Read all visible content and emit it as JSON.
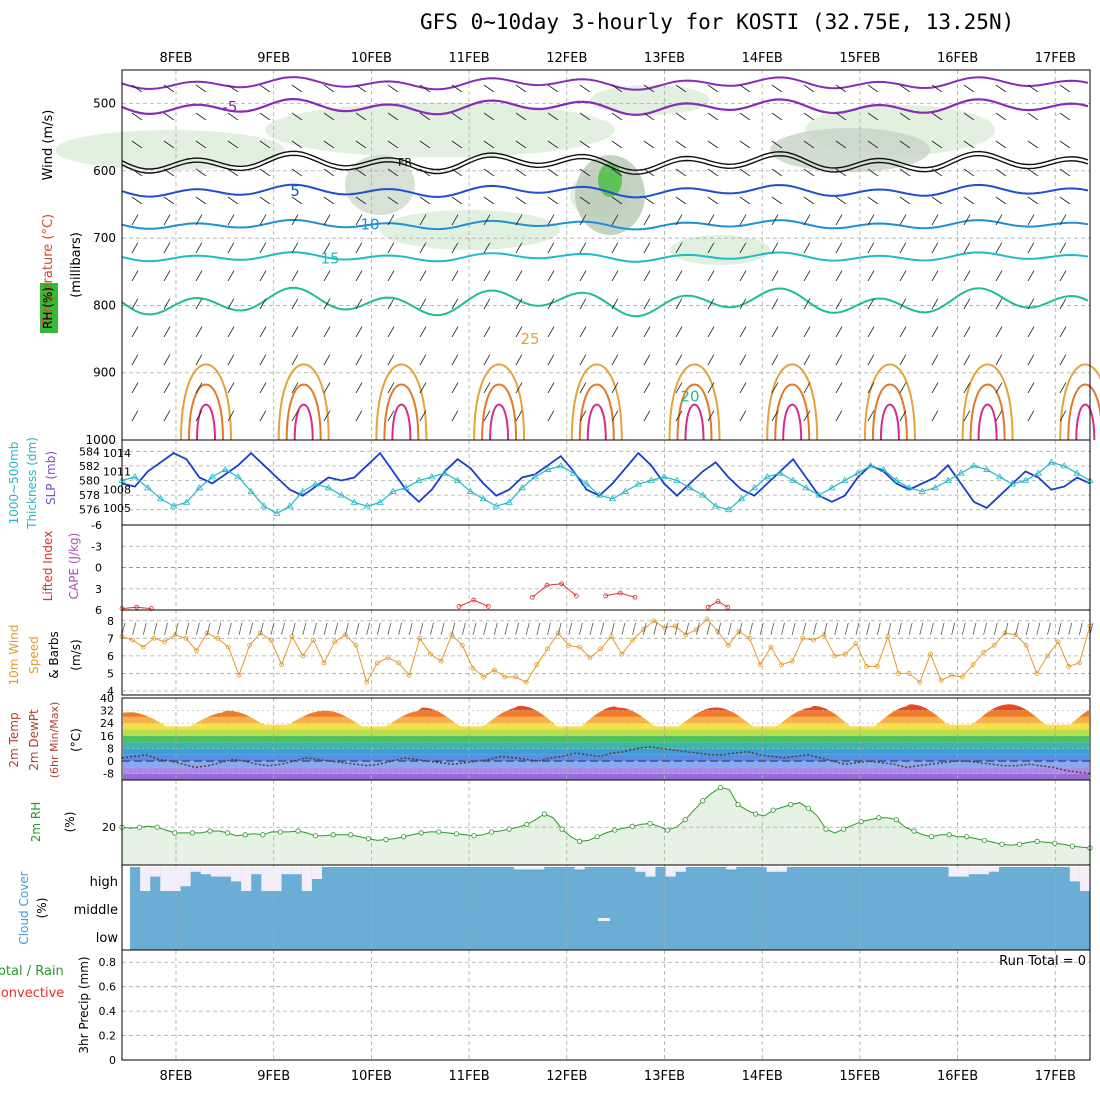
{
  "title": "GFS 0~10day 3-hourly for KOSTI (32.75E, 13.25N)",
  "date_labels": [
    "8FEB",
    "9FEB",
    "10FEB",
    "11FEB",
    "12FEB",
    "13FEB",
    "14FEB",
    "15FEB",
    "16FEB",
    "17FEB"
  ],
  "panel_labels": {
    "upper": {
      "wind": "Wind (m/s)",
      "temp": "Temperature (°C)",
      "rh": "RH (%)",
      "mb": "(millibars)"
    },
    "thick": {
      "a": "1000~500mb",
      "b": "Thickness (dm)",
      "c": "SLP (mb)"
    },
    "cape": {
      "li": "Lifted Index",
      "cape": "CAPE (J/kg)"
    },
    "wind10": {
      "a": "10m Wind",
      "b": "Speed",
      "c": "& Barbs",
      "d": "(m/s)"
    },
    "temp2m": {
      "a": "2m Temp",
      "b": "2m DewPt",
      "c": "(6hr Min/Max)",
      "d": "(°C)"
    },
    "rh2m": {
      "a": "2m RH",
      "b": "(%)"
    },
    "cloud": {
      "a": "Cloud Cover",
      "b": "(%)",
      "high": "high",
      "middle": "middle",
      "low": "low"
    },
    "precip": {
      "a": "Total / Rain",
      "b": "Convective",
      "c": "3hr Precip (mm)",
      "run_total": "Run Total = 0"
    }
  },
  "colors": {
    "slp": "#1a3dcc",
    "thick": "#22b8c8",
    "wind10": "#e59a2a",
    "rh": "#2a9a2a",
    "li": "#e03030",
    "cloud": "#6aaed6",
    "cloudfree": "#f4eef8"
  },
  "chart_data": [
    {
      "type": "contour",
      "title": "Upper air",
      "ylabel": "millibars",
      "ylim": [
        1000,
        450
      ],
      "yticks": [
        500,
        600,
        700,
        800,
        900,
        1000
      ],
      "isotherm_labels": [
        {
          "label": "-5",
          "level": 505
        },
        {
          "label": "FR",
          "level": 585
        },
        {
          "label": "5",
          "level": 630
        },
        {
          "label": "10",
          "level": 680
        },
        {
          "label": "15",
          "level": 730
        },
        {
          "label": "25",
          "level": 850
        },
        {
          "label": "20",
          "level": 935
        }
      ]
    },
    {
      "type": "line",
      "title": "Thickness / SLP",
      "thick_yticks": [
        576,
        578,
        580,
        582,
        584
      ],
      "slp_yticks": [
        1005,
        1008,
        1011,
        1014
      ],
      "series": [
        {
          "name": "SLP",
          "values": [
            1009,
            1008.5,
            1011,
            1012.5,
            1014,
            1013,
            1010,
            1009,
            1010.5,
            1012,
            1014,
            1012,
            1010,
            1008,
            1007,
            1008.5,
            1010,
            1009.5,
            1010,
            1012,
            1014,
            1011,
            1008,
            1006,
            1008,
            1011,
            1013,
            1011.5,
            1009,
            1007,
            1008,
            1010,
            1010.5,
            1012,
            1013.5,
            1011,
            1008,
            1007,
            1009,
            1011.5,
            1014,
            1012,
            1009,
            1007,
            1009,
            1011,
            1012.5,
            1010,
            1008,
            1007,
            1009,
            1011,
            1013,
            1010,
            1007,
            1006,
            1007,
            1010,
            1012,
            1011,
            1009,
            1008,
            1009,
            1010,
            1012,
            1009,
            1006,
            1005,
            1007,
            1009,
            1011,
            1010,
            1008,
            1008.5,
            1010,
            1009
          ]
        },
        {
          "name": "Thickness",
          "values": [
            580,
            580.5,
            579,
            577.5,
            576.5,
            577,
            579,
            580.5,
            581.5,
            580.5,
            578.5,
            576.5,
            575.5,
            576.5,
            578.5,
            579.5,
            579,
            578,
            577,
            576.5,
            577,
            578.5,
            579,
            580,
            580.5,
            581,
            580,
            578.5,
            577.5,
            576.5,
            577,
            579,
            580.5,
            581.5,
            582,
            581,
            579.5,
            578,
            577.5,
            578.5,
            579.5,
            580,
            580.5,
            580,
            579,
            578,
            576.5,
            576,
            577.5,
            579,
            580.5,
            581,
            580,
            579,
            578,
            579,
            580,
            581,
            582,
            581.5,
            580,
            579,
            578.5,
            579,
            580,
            581,
            582,
            581.5,
            580.5,
            579.5,
            580,
            581,
            582.5,
            582,
            581,
            580
          ]
        }
      ]
    },
    {
      "type": "line",
      "title": "Lifted Index / CAPE",
      "yticks": [
        -6,
        -3,
        0,
        3,
        6
      ],
      "ylim": [
        -6,
        6
      ],
      "series": [
        {
          "name": "Lifted Index",
          "segments": [
            [
              [
                0.0,
                5.8
              ],
              [
                0.15,
                5.6
              ],
              [
                0.3,
                5.8
              ]
            ],
            [
              [
                3.45,
                5.5
              ],
              [
                3.6,
                4.6
              ],
              [
                3.75,
                5.5
              ]
            ],
            [
              [
                4.2,
                4.2
              ],
              [
                4.35,
                2.5
              ],
              [
                4.5,
                2.3
              ],
              [
                4.65,
                4.0
              ]
            ],
            [
              [
                4.95,
                4.0
              ],
              [
                5.1,
                3.6
              ],
              [
                5.25,
                4.2
              ]
            ],
            [
              [
                6.0,
                5.6
              ],
              [
                6.1,
                4.8
              ],
              [
                6.2,
                5.6
              ]
            ]
          ]
        }
      ]
    },
    {
      "type": "line",
      "title": "10m Wind Speed",
      "yticks": [
        4,
        5,
        6,
        7,
        8
      ],
      "ylim": [
        4,
        8.5
      ],
      "series": [
        {
          "name": "Wind speed",
          "values": [
            7.1,
            6.9,
            6.5,
            7.0,
            6.8,
            7.2,
            7.0,
            6.3,
            7.3,
            7.0,
            6.5,
            4.9,
            6.6,
            7.3,
            6.9,
            5.5,
            7.1,
            6.0,
            6.9,
            5.6,
            6.8,
            7.2,
            6.6,
            4.5,
            5.6,
            5.9,
            5.6,
            4.9,
            7.0,
            6.1,
            5.7,
            7.2,
            6.6,
            5.3,
            4.8,
            5.2,
            4.8,
            4.8,
            4.5,
            5.5,
            6.4,
            7.3,
            6.6,
            6.5,
            5.9,
            6.4,
            7.1,
            6.1,
            6.9,
            7.5,
            8.0,
            7.6,
            7.7,
            7.2,
            7.5,
            8.1,
            7.4,
            6.6,
            7.4,
            7.0,
            5.5,
            6.5,
            5.5,
            5.7,
            7.0,
            6.9,
            7.2,
            6.0,
            6.1,
            6.7,
            5.4,
            5.4,
            7.1,
            5.0,
            5.0,
            4.5,
            6.1,
            4.6,
            4.9,
            4.8,
            5.5,
            6.2,
            6.6,
            7.3,
            7.2,
            6.6,
            5.0,
            6.0,
            6.8,
            5.4,
            5.6,
            7.7
          ]
        }
      ]
    },
    {
      "type": "area",
      "title": "2m Temp / DewPt",
      "yticks": [
        -8,
        0,
        8,
        16,
        24,
        32,
        40
      ],
      "ylim": [
        -12,
        40
      ],
      "series": [
        {
          "name": "2m Temp",
          "daily_min": [
            22,
            23,
            22,
            22,
            22,
            22,
            22,
            22,
            23,
            23
          ],
          "daily_max": [
            31,
            32,
            32,
            34,
            35,
            34,
            34,
            35,
            36,
            36
          ]
        },
        {
          "name": "2m DewPt",
          "values": [
            2,
            3,
            4,
            1,
            0,
            -2,
            -4,
            -3,
            -1,
            1,
            0,
            -2,
            -3,
            -2,
            0,
            2,
            1,
            0,
            -1,
            -2,
            -3,
            -2,
            0,
            2,
            1,
            0,
            -1,
            -2,
            -1,
            0,
            1,
            3,
            2,
            1,
            0,
            2,
            3,
            5,
            4,
            3,
            5,
            6,
            8,
            9,
            8,
            7,
            6,
            5,
            4,
            4,
            5,
            6,
            4,
            3,
            2,
            3,
            4,
            2,
            0,
            -2,
            -1,
            0,
            -1,
            -2,
            -4,
            -3,
            -2,
            -1,
            0,
            0,
            -1,
            -2,
            -3,
            -3,
            -2,
            -3,
            -4,
            -6,
            -7,
            -8
          ]
        }
      ]
    },
    {
      "type": "area",
      "title": "2m RH",
      "yticks": [
        20
      ],
      "ylim": [
        0,
        45
      ],
      "series": [
        {
          "name": "2m RH",
          "values": [
            20,
            19.5,
            20,
            20.5,
            20,
            18.5,
            17,
            17,
            17,
            17,
            18,
            18,
            17,
            15.5,
            16,
            16.5,
            16,
            17.5,
            17.5,
            17.5,
            18,
            17,
            15.5,
            15.5,
            16,
            16,
            16,
            15,
            14,
            13,
            13.5,
            14,
            15,
            16,
            17,
            17.5,
            17.5,
            17,
            16.5,
            16,
            15.5,
            16,
            17.5,
            18,
            19,
            20,
            21.5,
            24,
            27,
            25,
            19,
            15,
            12.5,
            13,
            15,
            17,
            18.5,
            19.5,
            20.5,
            21.5,
            22,
            20.5,
            18.5,
            20,
            24,
            29,
            34,
            38,
            41,
            40,
            32,
            29,
            27,
            26,
            29,
            30.5,
            32,
            33,
            30,
            26,
            19,
            17,
            19,
            21,
            23,
            24,
            25,
            25,
            24,
            20,
            18,
            16,
            15,
            16,
            16,
            15,
            15,
            14,
            13,
            12,
            11,
            10.5,
            11,
            12,
            12.5,
            12,
            11.5,
            11,
            10,
            9.5,
            9
          ]
        }
      ]
    },
    {
      "type": "bar",
      "title": "Cloud Cover",
      "series": [
        {
          "name": "High cloud",
          "values": [
            0,
            100,
            40,
            100,
            100,
            80,
            20,
            30,
            40,
            40,
            60,
            100,
            30,
            100,
            100,
            30,
            30,
            100,
            50,
            0,
            0,
            0,
            0,
            0,
            0,
            0,
            0,
            0,
            0,
            0,
            0,
            0,
            0,
            0,
            0,
            0,
            0,
            0,
            10,
            10,
            10,
            0,
            0,
            0,
            10,
            0,
            0,
            0,
            0,
            0,
            20,
            40,
            0,
            40,
            20,
            0,
            0,
            0,
            0,
            10,
            0,
            0,
            0,
            20,
            20,
            0,
            0,
            0,
            0,
            0,
            0,
            0,
            0,
            0,
            0,
            0,
            0,
            0,
            0,
            0,
            0,
            40,
            40,
            30,
            30,
            20,
            0,
            0,
            0,
            0,
            0,
            0,
            0,
            60,
            100
          ]
        },
        {
          "name": "Middle cloud",
          "values": [
            0,
            0,
            0,
            0,
            0,
            0,
            0,
            0,
            0,
            0,
            0,
            0,
            0,
            0,
            0,
            0,
            0,
            0,
            0,
            0,
            0,
            0,
            0,
            0,
            0,
            0,
            0,
            0,
            0,
            0,
            0,
            0,
            0,
            0,
            0,
            0,
            0,
            0,
            0,
            0,
            0,
            0,
            0,
            0,
            0,
            0,
            0,
            0,
            0,
            0,
            0,
            0,
            0,
            0,
            0,
            0,
            0,
            0,
            0,
            0,
            0,
            0,
            0,
            0,
            0,
            0,
            0,
            0,
            0,
            0,
            0,
            0,
            0,
            0,
            0,
            0,
            0,
            0,
            0,
            0,
            0,
            0,
            0,
            0,
            0,
            0,
            0,
            0,
            0,
            0,
            0,
            0,
            0,
            0,
            0
          ]
        }
      ]
    },
    {
      "type": "bar",
      "title": "3hr Precip",
      "yticks": [
        0,
        0.2,
        0.4,
        0.6,
        0.8
      ],
      "ylim": [
        0,
        0.9
      ],
      "series": [
        {
          "name": "Total precip",
          "values": []
        }
      ]
    }
  ]
}
